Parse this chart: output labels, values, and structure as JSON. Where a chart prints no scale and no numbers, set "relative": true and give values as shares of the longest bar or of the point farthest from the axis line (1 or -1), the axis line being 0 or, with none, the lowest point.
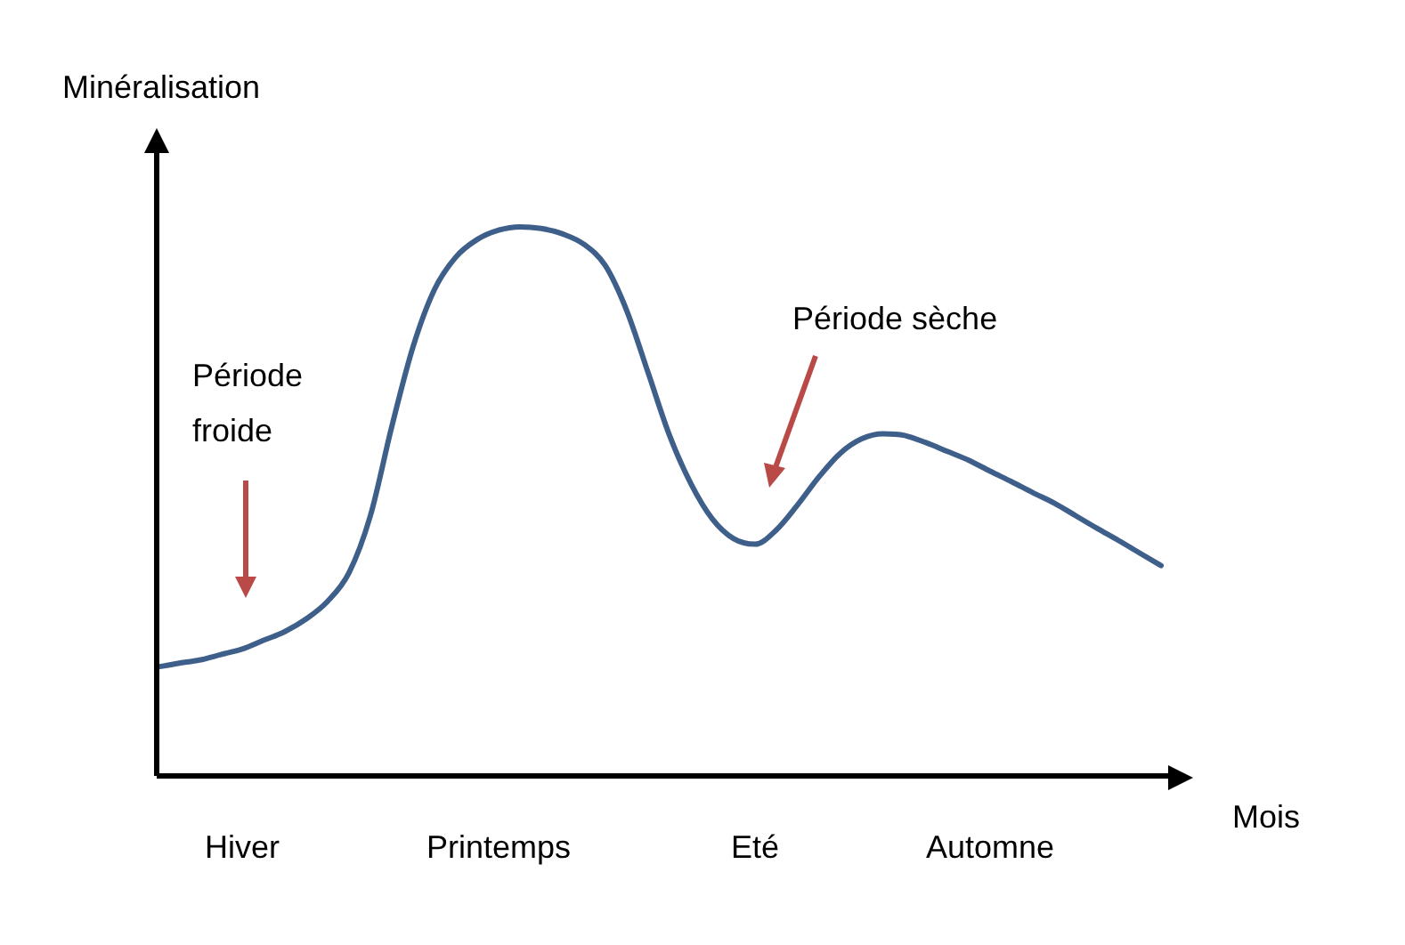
{
  "chart_data": {
    "type": "line",
    "relative": true,
    "xlabel": "Mois",
    "ylabel": "Minéralisation",
    "tick_labels": "x",
    "marker": "none",
    "color": "#3e5f8a",
    "categories": [
      null,
      null,
      null,
      null,
      "Hiver",
      null,
      null,
      null,
      null,
      null,
      null,
      null,
      null,
      null,
      null,
      null,
      "Printemps",
      null,
      null,
      null,
      null,
      null,
      null,
      null,
      null,
      null,
      null,
      null,
      "Eté",
      null,
      null,
      null,
      null,
      null,
      null,
      null,
      null,
      null,
      null,
      "Automne",
      null,
      null,
      null,
      null,
      null,
      null,
      null,
      null
    ],
    "values": [
      0.198,
      0.205,
      0.211,
      0.221,
      0.231,
      0.247,
      0.263,
      0.286,
      0.318,
      0.37,
      0.474,
      0.636,
      0.782,
      0.886,
      0.945,
      0.977,
      0.994,
      1,
      0.997,
      0.987,
      0.968,
      0.929,
      0.847,
      0.734,
      0.62,
      0.532,
      0.468,
      0.432,
      0.422,
      0.448,
      0.494,
      0.545,
      0.588,
      0.614,
      0.623,
      0.62,
      0.607,
      0.591,
      0.575,
      0.555,
      0.536,
      0.516,
      0.497,
      0.474,
      0.451,
      0.429,
      0.406,
      0.383
    ],
    "annotations": [
      "Période froide",
      "Période sèche"
    ]
  }
}
